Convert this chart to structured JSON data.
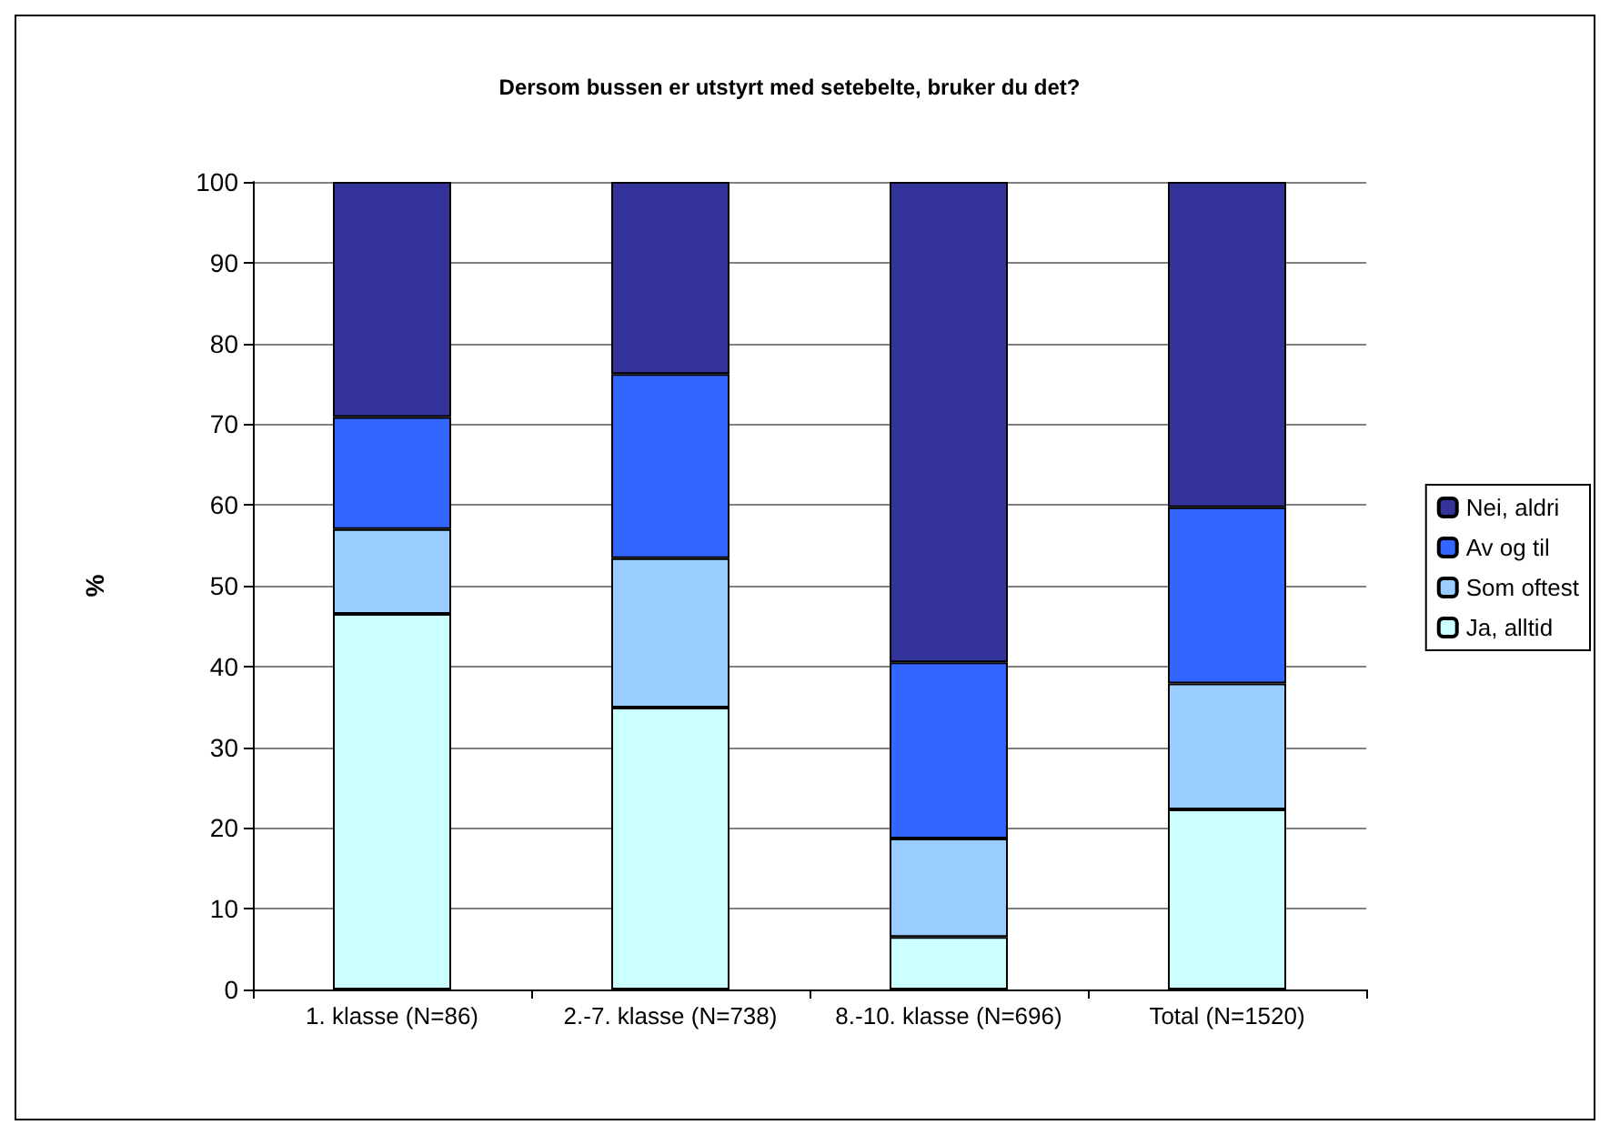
{
  "chart_data": {
    "type": "bar",
    "title": "Dersom bussen er utstyrt med setebelte, bruker du det?",
    "ylabel": "%",
    "categories": [
      "1. klasse (N=86)",
      "2.-7. klasse (N=738)",
      "8.-10. klasse (N=696)",
      "Total (N=1520)"
    ],
    "stacked": true,
    "series": [
      {
        "name": "Ja, alltid",
        "color": "#ccffff",
        "values": [
          46.5,
          34.9,
          6.5,
          22.3
        ]
      },
      {
        "name": "Som oftest",
        "color": "#99ccff",
        "values": [
          10.5,
          18.5,
          12.2,
          15.6
        ]
      },
      {
        "name": "Av og til",
        "color": "#3366ff",
        "values": [
          13.9,
          22.8,
          21.8,
          21.8
        ]
      },
      {
        "name": "Nei, aldri",
        "color": "#333399",
        "values": [
          29.1,
          23.8,
          59.5,
          40.3
        ]
      }
    ],
    "ylim": [
      0,
      100
    ],
    "yticks": [
      0,
      10,
      20,
      30,
      40,
      50,
      60,
      70,
      80,
      90,
      100
    ],
    "grid": "y",
    "legend": "right"
  }
}
